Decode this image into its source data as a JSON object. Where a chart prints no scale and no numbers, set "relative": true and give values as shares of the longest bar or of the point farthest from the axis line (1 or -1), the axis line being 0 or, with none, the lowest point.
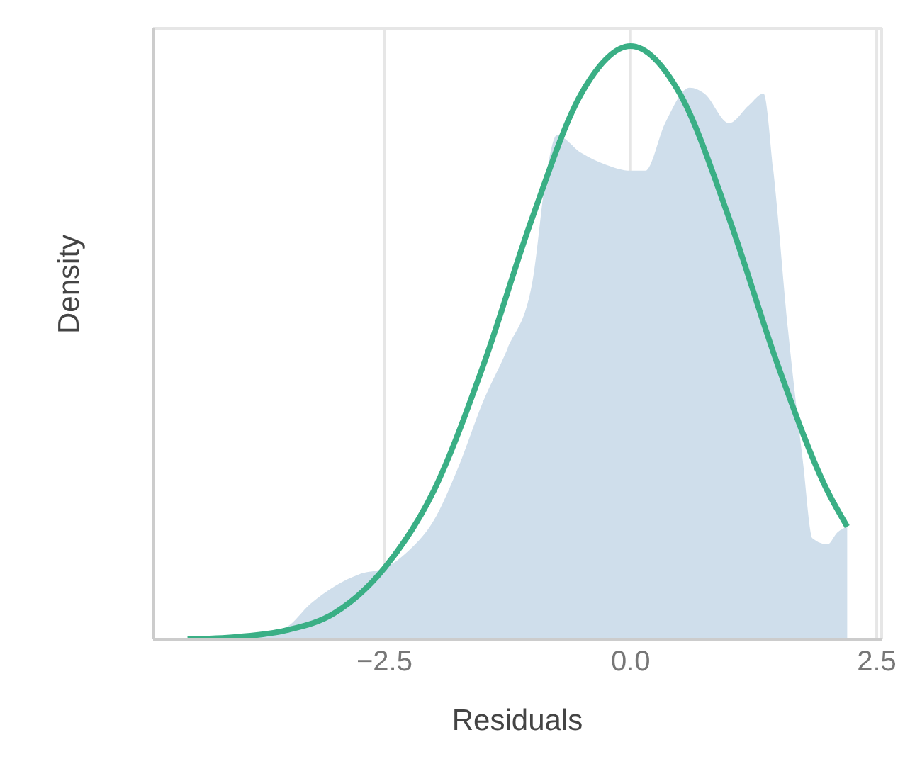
{
  "chart_data": {
    "type": "area",
    "xlabel": "Residuals",
    "ylabel": "Density",
    "relative": true,
    "grid": true,
    "xlim": [
      -4.85,
      2.55
    ],
    "xticks": [
      {
        "value": -2.5,
        "label": "−2.5"
      },
      {
        "value": 0,
        "label": "0.0"
      },
      {
        "value": 2.5,
        "label": "2.5"
      }
    ],
    "series": [
      {
        "color": "#cfdeeb",
        "x": [
          -4.0,
          -3.5,
          -3.25,
          -3.0,
          -2.75,
          -2.5,
          -2.25,
          -2.0,
          -1.75,
          -1.5,
          -1.25,
          -1.0,
          -0.85,
          -0.75,
          -0.5,
          -0.25,
          0.0,
          0.15,
          0.35,
          0.6,
          0.75,
          1.0,
          1.2,
          1.35,
          1.45,
          1.6,
          1.75,
          1.85,
          2.0,
          2.1,
          2.2
        ],
        "values": [
          0.0,
          0.02,
          0.06,
          0.09,
          0.11,
          0.12,
          0.15,
          0.2,
          0.29,
          0.4,
          0.49,
          0.6,
          0.79,
          0.85,
          0.82,
          0.8,
          0.79,
          0.79,
          0.87,
          0.93,
          0.92,
          0.87,
          0.9,
          0.92,
          0.79,
          0.52,
          0.3,
          0.17,
          0.16,
          0.18,
          0.19
        ]
      },
      {
        "type": "line",
        "color": "#3aaf85",
        "x": [
          -4.5,
          -4.0,
          -3.5,
          -3.0,
          -2.5,
          -2.0,
          -1.5,
          -1.0,
          -0.5,
          0.0,
          0.5,
          1.0,
          1.5,
          2.0,
          2.2
        ],
        "values": [
          0.0,
          0.004,
          0.015,
          0.045,
          0.12,
          0.25,
          0.46,
          0.71,
          0.92,
          1.0,
          0.92,
          0.71,
          0.46,
          0.25,
          0.19
        ]
      }
    ]
  }
}
